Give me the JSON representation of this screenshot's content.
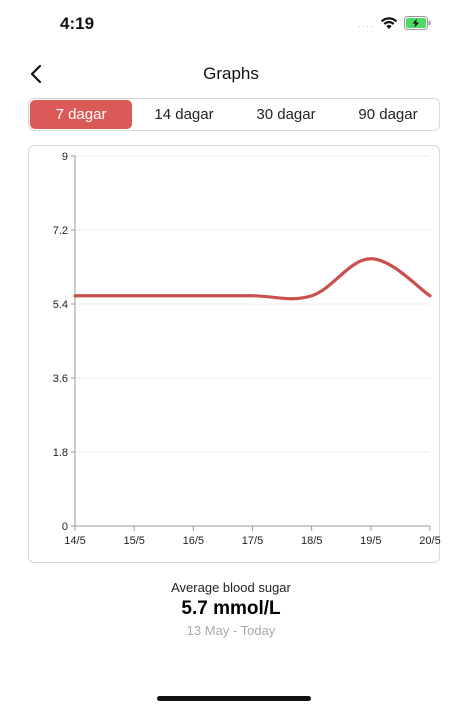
{
  "status_bar": {
    "time": "4:19",
    "signal_dots": "····",
    "icons": [
      "wifi-icon",
      "battery-charging-icon"
    ]
  },
  "nav": {
    "back_icon": "chevron-left-icon",
    "title": "Graphs"
  },
  "segments": [
    {
      "label": "7 dagar",
      "active": true
    },
    {
      "label": "14 dagar",
      "active": false
    },
    {
      "label": "30 dagar",
      "active": false
    },
    {
      "label": "90 dagar",
      "active": false
    }
  ],
  "colors": {
    "accent": "#d95a57",
    "line": "#c9504d",
    "grid": "#eeeeee",
    "axis": "#999999"
  },
  "chart_data": {
    "type": "line",
    "title": "",
    "xlabel": "",
    "ylabel": "",
    "categories": [
      "14/5",
      "15/5",
      "16/5",
      "17/5",
      "18/5",
      "19/5",
      "20/5"
    ],
    "yticks": [
      "0",
      "1.8",
      "3.6",
      "5.4",
      "7.2",
      "9"
    ],
    "ylim": [
      0,
      9
    ],
    "grid": true,
    "series": [
      {
        "values": [
          5.6,
          5.6,
          5.6,
          5.6,
          5.6,
          6.5,
          5.6
        ]
      }
    ]
  },
  "summary": {
    "label": "Average blood sugar",
    "value": "5.7 mmol/L",
    "range": "13 May  - Today"
  }
}
